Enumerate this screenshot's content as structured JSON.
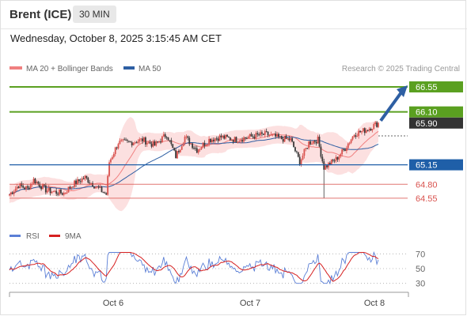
{
  "header": {
    "instrument": "Brent (ICE)",
    "timeframe": "30 MIN",
    "datetime": "Wednesday, October 8, 2025 3:15:45 AM CET"
  },
  "legend": {
    "ma20_label": "MA 20 + Bollinger Bands",
    "ma50_label": "MA 50",
    "rsi_label": "RSI",
    "ma9_label": "9MA",
    "credit": "Research © 2025 Trading Central"
  },
  "colors": {
    "candle_up": "#d9534f",
    "candle_down": "#3a3a3a",
    "bollinger_fill": "#fbd6d6",
    "ma20": "#f08080",
    "ma50": "#2e5fa3",
    "resistance": "#5aa020",
    "pivot": "#1f5fa8",
    "support": "#d9534f",
    "rsi": "#5b7fd6",
    "ma9": "#d62020"
  },
  "chart_data": {
    "type": "candlestick",
    "x_ticks": [
      "Oct 6",
      "Oct 7",
      "Oct 8"
    ],
    "ylim": [
      64.25,
      66.72
    ],
    "levels": [
      {
        "label": "66.55",
        "value": 66.55,
        "kind": "resistance"
      },
      {
        "label": "66.10",
        "value": 66.1,
        "kind": "resistance"
      },
      {
        "label": "65.90",
        "value": 65.9,
        "kind": "last"
      },
      {
        "label": "65.15",
        "value": 65.15,
        "kind": "pivot"
      },
      {
        "label": "64.80",
        "value": 64.8,
        "kind": "support"
      },
      {
        "label": "64.55",
        "value": 64.55,
        "kind": "support"
      }
    ],
    "rsi": {
      "ticks": [
        "70",
        "50",
        "30"
      ],
      "tick_values": [
        70,
        50,
        30
      ],
      "ylim": [
        20,
        80
      ]
    }
  }
}
